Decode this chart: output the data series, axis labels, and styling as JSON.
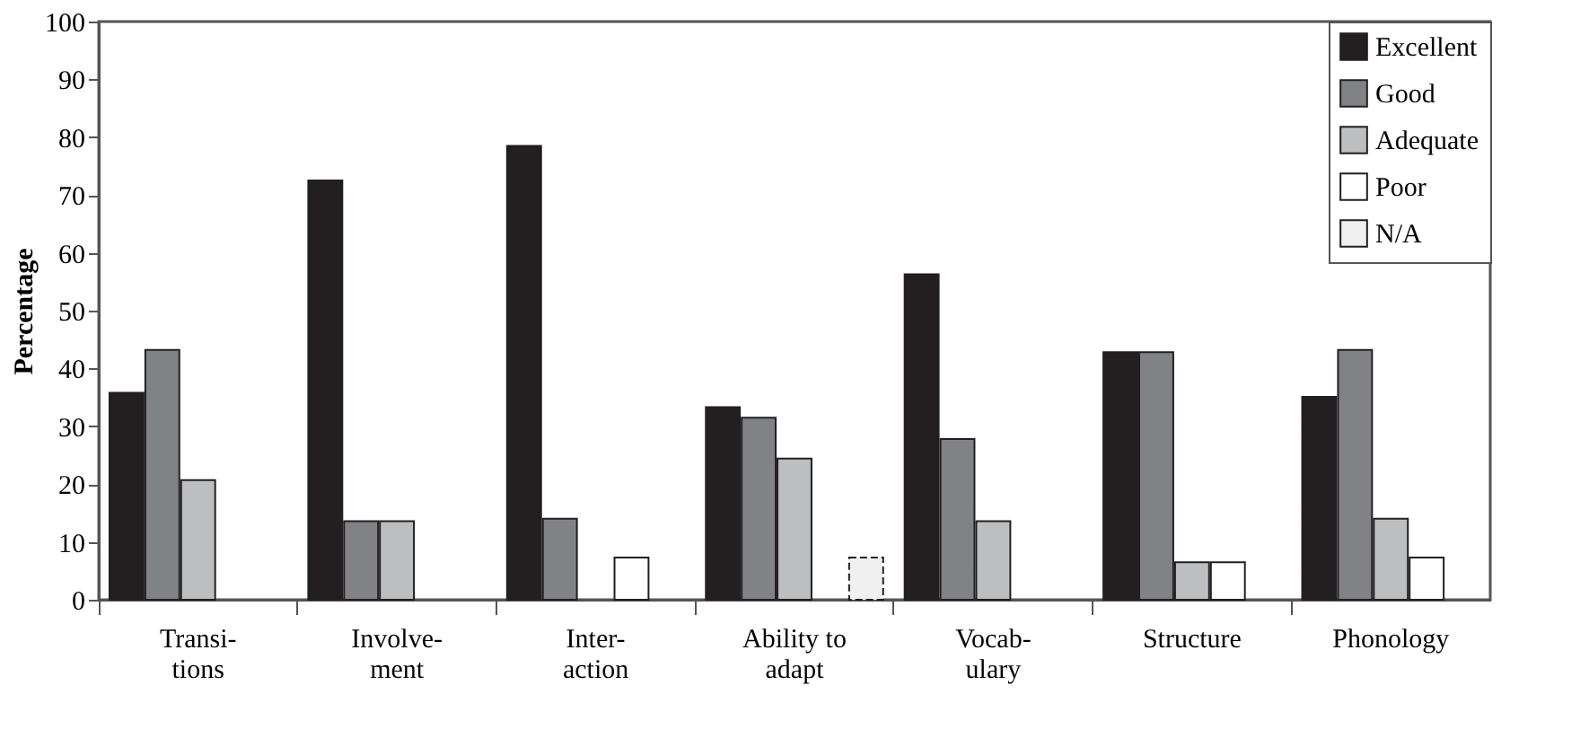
{
  "chart_data": {
    "type": "bar",
    "ylabel": "Percentage",
    "categories": [
      "Transi-\ntions",
      "Involve-\nment",
      "Inter-\naction",
      "Ability to\nadapt",
      "Vocab-\nulary",
      "Structure",
      "Phonology"
    ],
    "series": [
      {
        "name": "Excellent",
        "color": "#231f20",
        "values": [
          35.8,
          72.5,
          78.5,
          33.3,
          56.3,
          42.8,
          35.1
        ]
      },
      {
        "name": "Good",
        "color": "#818285",
        "values": [
          43.2,
          13.6,
          14.0,
          31.5,
          27.8,
          42.8,
          43.2
        ]
      },
      {
        "name": "Adequate",
        "color": "#bcbec0",
        "values": [
          20.7,
          13.6,
          null,
          24.4,
          13.6,
          6.5,
          14.0
        ]
      },
      {
        "name": "Poor",
        "color": "#ffffff",
        "values": [
          null,
          null,
          7.3,
          null,
          null,
          6.5,
          7.3
        ]
      },
      {
        "name": "N/A",
        "color": "#f0f0f0",
        "line_style": "dashed",
        "values": [
          null,
          null,
          null,
          7.3,
          null,
          null,
          null
        ]
      }
    ],
    "ylim": [
      0,
      100
    ],
    "yticks": [
      0,
      10,
      20,
      30,
      40,
      50,
      60,
      70,
      80,
      90,
      100
    ],
    "grid": false,
    "legend": "top right"
  }
}
